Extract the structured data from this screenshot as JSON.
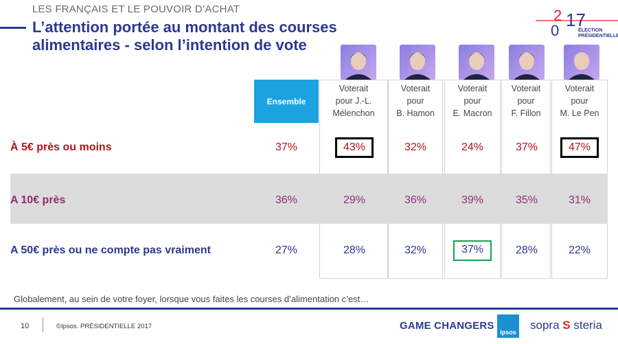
{
  "header": {
    "supertitle": "LES FRANÇAIS ET LE POUVOIR D’ACHAT",
    "title_line1": "L’attention portée au montant des courses",
    "title_line2": "alimentaires - selon l’intention de vote"
  },
  "logo": {
    "year_top": "2",
    "year_mid": "0",
    "year_num": "17",
    "line1": "ÉLECTION",
    "line2": "PRÉSIDENTIELLE",
    "color": "#e3242b"
  },
  "colors": {
    "row1": "#b5121b",
    "row2": "#8e2f6f",
    "row3": "#2b3990",
    "ensemble": "#1aa3e0",
    "band": "#dcdcdc"
  },
  "chart_data": {
    "type": "table",
    "columns": [
      {
        "key": "ensemble",
        "label_lines": [
          "Ensemble"
        ]
      },
      {
        "key": "melenchon",
        "label_lines": [
          "Voterait",
          "pour J.-L.",
          "Mélenchon"
        ]
      },
      {
        "key": "hamon",
        "label_lines": [
          "Voterait",
          "pour",
          "B. Hamon"
        ]
      },
      {
        "key": "macron",
        "label_lines": [
          "Voterait",
          "pour",
          "E. Macron"
        ]
      },
      {
        "key": "fillon",
        "label_lines": [
          "Voterait",
          "pour",
          "F. Fillon"
        ]
      },
      {
        "key": "lepen",
        "label_lines": [
          "Voterait",
          "pour",
          "M. Le Pen"
        ]
      }
    ],
    "rows": [
      {
        "label": "À 5€ près ou moins",
        "values": [
          "37%",
          "43%",
          "32%",
          "24%",
          "37%",
          "47%"
        ]
      },
      {
        "label": "A 10€ près",
        "values": [
          "36%",
          "29%",
          "36%",
          "39%",
          "35%",
          "31%"
        ]
      },
      {
        "label": "A 50€ près ou ne compte pas vraiment",
        "values": [
          "27%",
          "28%",
          "32%",
          "37%",
          "28%",
          "22%"
        ]
      }
    ],
    "highlights": [
      {
        "row": 0,
        "col": 1,
        "style": "black-box"
      },
      {
        "row": 0,
        "col": 5,
        "style": "black-box"
      },
      {
        "row": 2,
        "col": 3,
        "style": "green-box"
      }
    ]
  },
  "question": "Globalement, au sein de votre foyer, lorsque vous faites les courses d’alimentation c’est…",
  "footer": {
    "page_number": "10",
    "copyright": "©Ipsos.  PRÉSIDENTIELLE 2017",
    "game_changers": "GAME CHANGERS",
    "ipsos": "Ipsos",
    "sopra_left": "sopra",
    "sopra_mark": "S",
    "sopra_right": "steria"
  }
}
